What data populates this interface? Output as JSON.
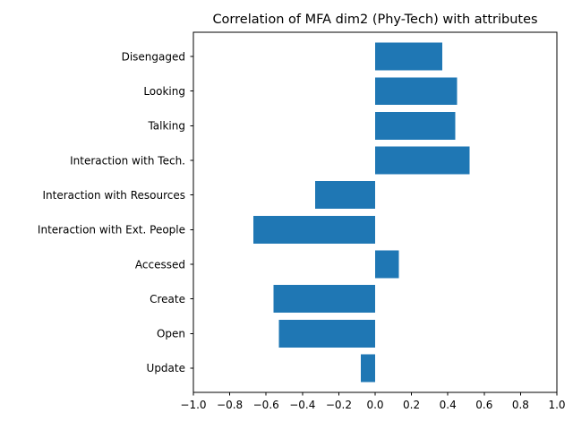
{
  "chart_data": {
    "type": "bar",
    "orientation": "horizontal",
    "title": "Correlation of MFA dim2 (Phy-Tech) with attributes",
    "xlabel": "",
    "ylabel": "",
    "xlim": [
      -1.0,
      1.0
    ],
    "xticks": [
      "−1.0",
      "−0.8",
      "−0.6",
      "−0.4",
      "−0.2",
      "0.0",
      "0.2",
      "0.4",
      "0.6",
      "0.8",
      "1.0"
    ],
    "xtick_values": [
      -1.0,
      -0.8,
      -0.6,
      -0.4,
      -0.2,
      0.0,
      0.2,
      0.4,
      0.6,
      0.8,
      1.0
    ],
    "categories": [
      "Update",
      "Open",
      "Create",
      "Accessed",
      "Interaction with Ext. People",
      "Interaction with Resources",
      "Interaction with Tech.",
      "Talking",
      "Looking",
      "Disengaged"
    ],
    "values": [
      -0.08,
      -0.53,
      -0.56,
      0.13,
      -0.67,
      -0.33,
      0.52,
      0.44,
      0.45,
      0.37
    ],
    "bar_color": "#1f77b4",
    "grid": false,
    "legend": "none"
  }
}
